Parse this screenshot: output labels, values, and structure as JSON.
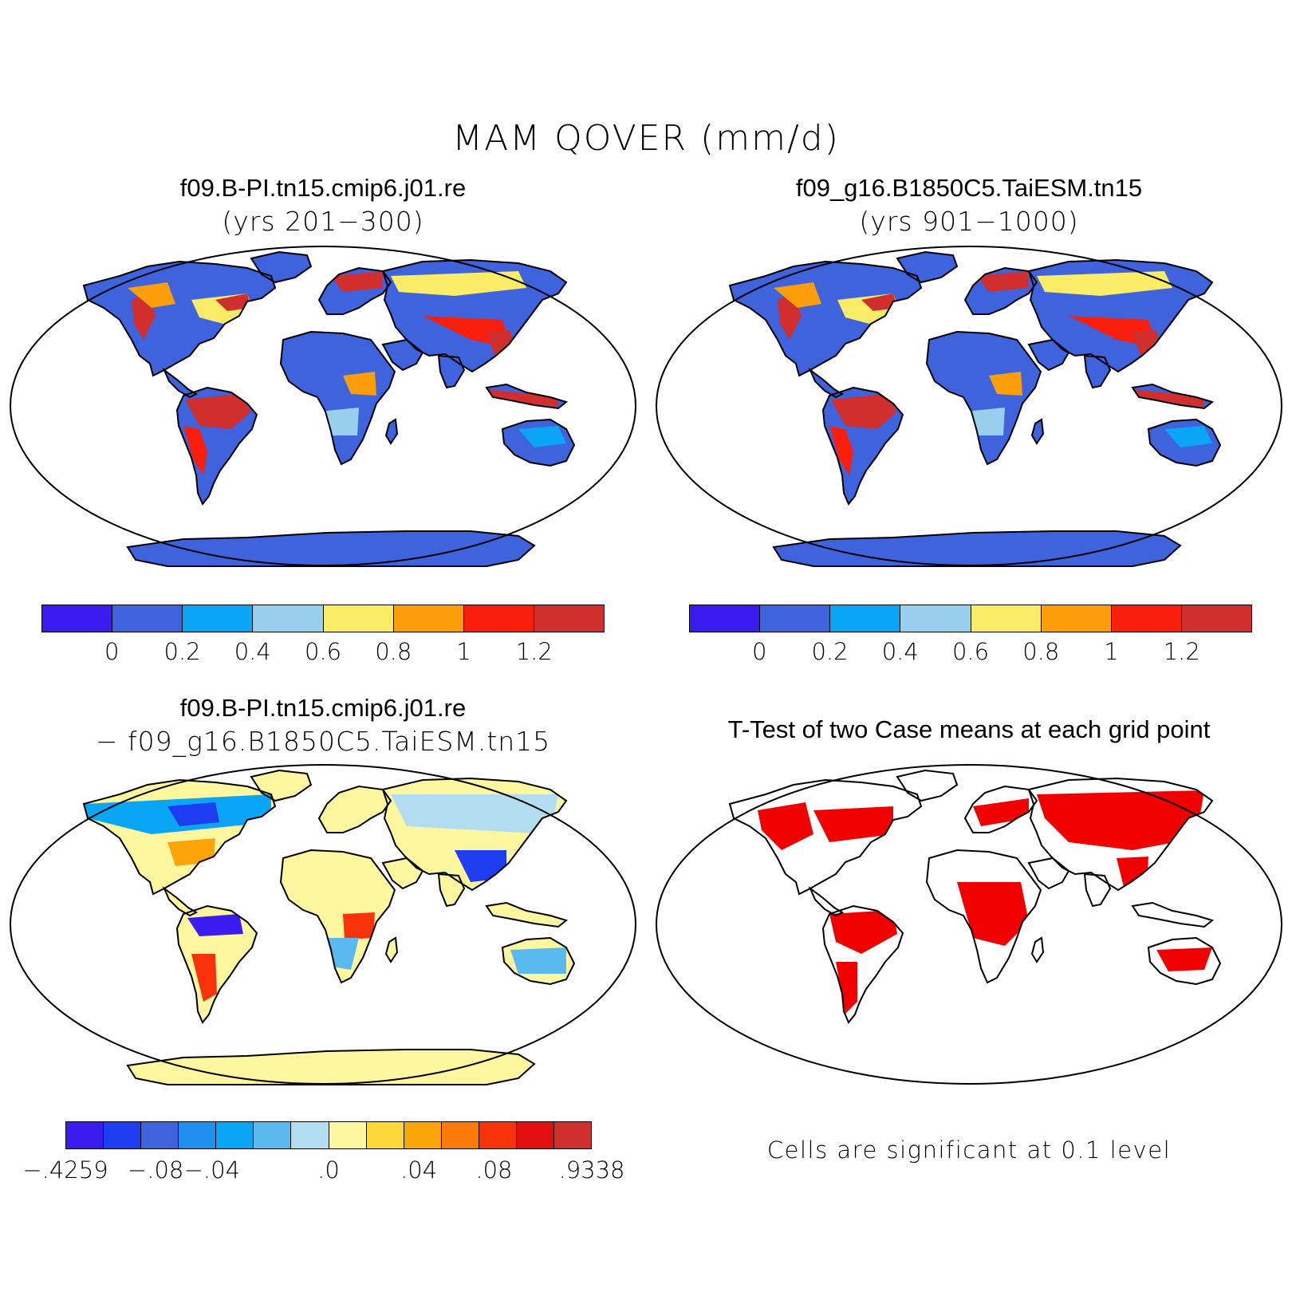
{
  "figure": {
    "title": "MAM QOVER (mm/d)"
  },
  "panels": [
    {
      "title": "f09.B-PI.tn15.cmip6.j01.re",
      "subtitle": "(yrs 201−300)",
      "scheme": "abs",
      "colorbar": {
        "colors": [
          "#3a1cf0",
          "#3e63dd",
          "#0aa6f5",
          "#97cfed",
          "#fbec68",
          "#fb9e09",
          "#fa1e0c",
          "#d12e2e"
        ],
        "ticks": [
          "0",
          "0.2",
          "0.4",
          "0.6",
          "0.8",
          "1",
          "1.2"
        ]
      }
    },
    {
      "title": "f09_g16.B1850C5.TaiESM.tn15",
      "subtitle": "(yrs 901−1000)",
      "scheme": "abs",
      "colorbar": {
        "colors": [
          "#3a1cf0",
          "#3e63dd",
          "#0aa6f5",
          "#97cfed",
          "#fbec68",
          "#fb9e09",
          "#fa1e0c",
          "#d12e2e"
        ],
        "ticks": [
          "0",
          "0.2",
          "0.4",
          "0.6",
          "0.8",
          "1",
          "1.2"
        ]
      }
    },
    {
      "title": "f09.B-PI.tn15.cmip6.j01.re",
      "subtitle": "− f09_g16.B1850C5.TaiESM.tn15",
      "scheme": "diff",
      "colorbar": {
        "colors": [
          "#3a1cf0",
          "#1e3cf0",
          "#3e63dd",
          "#2090f0",
          "#0aa6f5",
          "#5ab9ef",
          "#b2dcf0",
          "#fdf7a0",
          "#fdd83c",
          "#fba50a",
          "#fb7a0a",
          "#fa320c",
          "#e10f0f",
          "#d12e2e"
        ],
        "ticks": [
          "−.4259",
          "−.08",
          "−.04",
          ".0",
          ".04",
          ".08",
          ".9338"
        ]
      }
    },
    {
      "title": "T-Test of two Case means at each grid point",
      "subtitle": "",
      "scheme": "sig",
      "note": "Cells are significant at 0.1 level",
      "sig_color": "#f00000"
    }
  ]
}
